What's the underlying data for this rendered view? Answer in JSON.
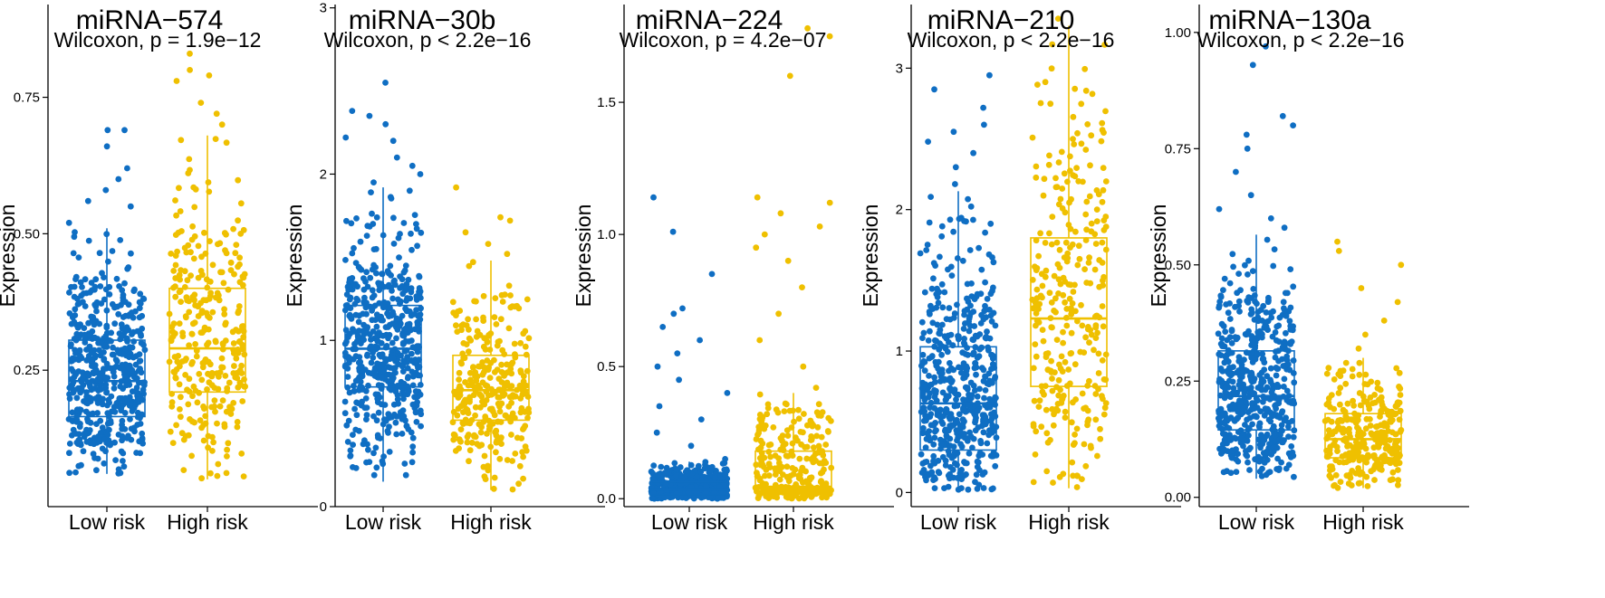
{
  "chart_data": [
    {
      "type": "boxplot",
      "title": "miRNA−574",
      "test_label": "Wilcoxon, p = 1.9e−12",
      "ylabel": "Expression",
      "categories": [
        "Low risk",
        "High risk"
      ],
      "colors": [
        "#0F6EC3",
        "#EFC000"
      ],
      "ylim": [
        0.0,
        0.92
      ],
      "yticks": [
        {
          "v": 0.25,
          "label": "0.25"
        },
        {
          "v": 0.5,
          "label": "0.50"
        },
        {
          "v": 0.75,
          "label": "0.75"
        }
      ],
      "series": [
        {
          "name": "Low risk",
          "min": 0.06,
          "q1": 0.165,
          "median": 0.23,
          "q3": 0.305,
          "max": 0.51,
          "outliers": [
            0.52,
            0.55,
            0.56,
            0.58,
            0.6,
            0.62,
            0.66,
            0.69,
            0.69
          ],
          "n": 520
        },
        {
          "name": "High risk",
          "min": 0.05,
          "q1": 0.21,
          "median": 0.29,
          "q3": 0.4,
          "max": 0.68,
          "outliers": [
            0.7,
            0.72,
            0.74,
            0.78,
            0.79,
            0.8,
            0.83
          ],
          "n": 300
        }
      ]
    },
    {
      "type": "boxplot",
      "title": "miRNA−30b",
      "test_label": "Wilcoxon, p < 2.2e−16",
      "ylabel": "Expression",
      "categories": [
        "Low risk",
        "High risk"
      ],
      "colors": [
        "#0F6EC3",
        "#EFC000"
      ],
      "ylim": [
        0.0,
        3.02
      ],
      "yticks": [
        {
          "v": 0,
          "label": "0"
        },
        {
          "v": 1,
          "label": "1"
        },
        {
          "v": 2,
          "label": "2"
        },
        {
          "v": 3,
          "label": "3"
        }
      ],
      "series": [
        {
          "name": "Low risk",
          "min": 0.15,
          "q1": 0.72,
          "median": 0.95,
          "q3": 1.21,
          "max": 1.92,
          "outliers": [
            1.95,
            2.0,
            2.05,
            2.1,
            2.2,
            2.22,
            2.3,
            2.35,
            2.38,
            2.55
          ],
          "n": 520
        },
        {
          "name": "High risk",
          "min": 0.1,
          "q1": 0.52,
          "median": 0.7,
          "q3": 0.91,
          "max": 1.48,
          "outliers": [
            1.52,
            1.58,
            1.65,
            1.72,
            1.74,
            1.92
          ],
          "n": 300
        }
      ]
    },
    {
      "type": "boxplot",
      "title": "miRNA−224",
      "test_label": "Wilcoxon, p = 4.2e−07",
      "ylabel": "Expression",
      "categories": [
        "Low risk",
        "High risk"
      ],
      "colors": [
        "#0F6EC3",
        "#EFC000"
      ],
      "ylim": [
        -0.03,
        1.87
      ],
      "yticks": [
        {
          "v": 0,
          "label": "0.0"
        },
        {
          "v": 0.5,
          "label": "0.5"
        },
        {
          "v": 1.0,
          "label": "1.0"
        },
        {
          "v": 1.5,
          "label": "1.5"
        }
      ],
      "series": [
        {
          "name": "Low risk",
          "min": 0.0,
          "q1": 0.015,
          "median": 0.035,
          "q3": 0.065,
          "max": 0.14,
          "outliers": [
            0.15,
            0.2,
            0.25,
            0.3,
            0.35,
            0.4,
            0.45,
            0.5,
            0.55,
            0.6,
            0.65,
            0.7,
            0.72,
            0.85,
            1.01,
            1.14
          ],
          "n": 520
        },
        {
          "name": "High risk",
          "min": 0.0,
          "q1": 0.02,
          "median": 0.045,
          "q3": 0.18,
          "max": 0.4,
          "outliers": [
            0.42,
            0.5,
            0.6,
            0.7,
            0.8,
            0.9,
            0.95,
            1.0,
            1.03,
            1.08,
            1.12,
            1.14,
            1.6,
            1.75,
            1.78
          ],
          "n": 300
        }
      ]
    },
    {
      "type": "boxplot",
      "title": "miRNA−210",
      "test_label": "Wilcoxon, p < 2.2e−16",
      "ylabel": "Expression",
      "categories": [
        "Low risk",
        "High risk"
      ],
      "colors": [
        "#0F6EC3",
        "#EFC000"
      ],
      "ylim": [
        -0.1,
        3.45
      ],
      "yticks": [
        {
          "v": 0,
          "label": "0"
        },
        {
          "v": 1,
          "label": "1"
        },
        {
          "v": 2,
          "label": "2"
        },
        {
          "v": 3,
          "label": "3"
        }
      ],
      "series": [
        {
          "name": "Low risk",
          "min": 0.02,
          "q1": 0.3,
          "median": 0.63,
          "q3": 1.03,
          "max": 2.13,
          "outliers": [
            2.18,
            2.3,
            2.4,
            2.48,
            2.55,
            2.6,
            2.72,
            2.85,
            2.95
          ],
          "n": 520
        },
        {
          "name": "High risk",
          "min": 0.03,
          "q1": 0.75,
          "median": 1.23,
          "q3": 1.8,
          "max": 3.3,
          "outliers": [
            3.35
          ],
          "n": 300
        }
      ]
    },
    {
      "type": "boxplot",
      "title": "miRNA−130a",
      "test_label": "Wilcoxon, p < 2.2e−16",
      "ylabel": "Expression",
      "categories": [
        "Low risk",
        "High risk"
      ],
      "colors": [
        "#0F6EC3",
        "#EFC000"
      ],
      "ylim": [
        -0.02,
        1.06
      ],
      "yticks": [
        {
          "v": 0,
          "label": "0.00"
        },
        {
          "v": 0.25,
          "label": "0.25"
        },
        {
          "v": 0.5,
          "label": "0.50"
        },
        {
          "v": 0.75,
          "label": "0.75"
        },
        {
          "v": 1.0,
          "label": "1.00"
        }
      ],
      "series": [
        {
          "name": "Low risk",
          "min": 0.04,
          "q1": 0.145,
          "median": 0.218,
          "q3": 0.315,
          "max": 0.565,
          "outliers": [
            0.58,
            0.6,
            0.62,
            0.65,
            0.7,
            0.75,
            0.78,
            0.8,
            0.82,
            0.93,
            0.97
          ],
          "n": 520
        },
        {
          "name": "High risk",
          "min": 0.02,
          "q1": 0.085,
          "median": 0.125,
          "q3": 0.18,
          "max": 0.3,
          "outliers": [
            0.32,
            0.35,
            0.38,
            0.42,
            0.45,
            0.5,
            0.53,
            0.55
          ],
          "n": 300
        }
      ]
    }
  ]
}
